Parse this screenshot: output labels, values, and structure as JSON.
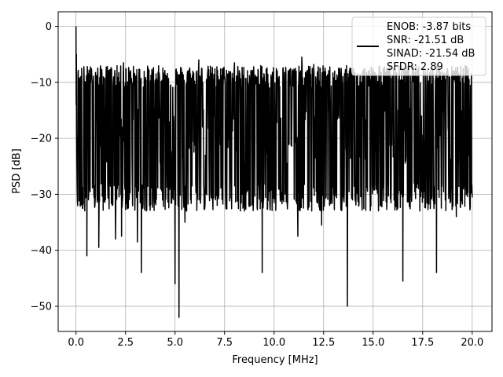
{
  "chart_data": {
    "type": "line",
    "title": "",
    "xlabel": "Frequency [MHz]",
    "ylabel": "PSD [dB]",
    "xlim": [
      -0.9,
      21.0
    ],
    "ylim": [
      -54.5,
      2.6
    ],
    "x_ticks": [
      0.0,
      2.5,
      5.0,
      7.5,
      10.0,
      12.5,
      15.0,
      17.5,
      20.0
    ],
    "x_tick_labels": [
      "0.0",
      "2.5",
      "5.0",
      "7.5",
      "10.0",
      "12.5",
      "15.0",
      "17.5",
      "20.0"
    ],
    "y_ticks": [
      0,
      -10,
      -20,
      -30,
      -40,
      -50
    ],
    "y_tick_labels": [
      "0",
      "−10",
      "−20",
      "−30",
      "−40",
      "−50"
    ],
    "grid": true,
    "legend_position": "top-right",
    "series": [
      {
        "name": "ENOB: -3.87 bits\nSNR: -21.51 dB\nSINAD: -21.54 dB\nSFDR: 2.89",
        "color": "#000000",
        "x_range": [
          0.0,
          20.0
        ],
        "noise_floor_mean_db": -19.5,
        "noise_band_db": [
          -32.0,
          -9.0
        ],
        "peaks": [
          {
            "x": 0.0,
            "y": 0.0
          },
          {
            "x": 0.1,
            "y": -8.5
          },
          {
            "x": 2.4,
            "y": -6.5
          },
          {
            "x": 5.5,
            "y": -5.0
          },
          {
            "x": 6.2,
            "y": -6.0
          },
          {
            "x": 8.0,
            "y": -6.5
          },
          {
            "x": 11.4,
            "y": -5.5
          },
          {
            "x": 12.0,
            "y": -6.8
          },
          {
            "x": 14.0,
            "y": -7.5
          }
        ],
        "dips": [
          {
            "x": 0.55,
            "y": -41.0
          },
          {
            "x": 1.15,
            "y": -39.5
          },
          {
            "x": 2.0,
            "y": -38.0
          },
          {
            "x": 2.3,
            "y": -37.5
          },
          {
            "x": 3.1,
            "y": -38.5
          },
          {
            "x": 3.3,
            "y": -44.0
          },
          {
            "x": 5.0,
            "y": -46.0
          },
          {
            "x": 5.2,
            "y": -52.0
          },
          {
            "x": 5.5,
            "y": -35.0
          },
          {
            "x": 9.4,
            "y": -44.0
          },
          {
            "x": 11.2,
            "y": -37.5
          },
          {
            "x": 12.4,
            "y": -35.5
          },
          {
            "x": 13.7,
            "y": -50.0
          },
          {
            "x": 16.5,
            "y": -45.5
          },
          {
            "x": 18.2,
            "y": -44.0
          },
          {
            "x": 19.2,
            "y": -34.0
          }
        ]
      }
    ]
  },
  "legend": {
    "lines": [
      "ENOB: -3.87 bits",
      "SNR: -21.51 dB",
      "SINAD: -21.54 dB",
      "SFDR: 2.89"
    ]
  }
}
